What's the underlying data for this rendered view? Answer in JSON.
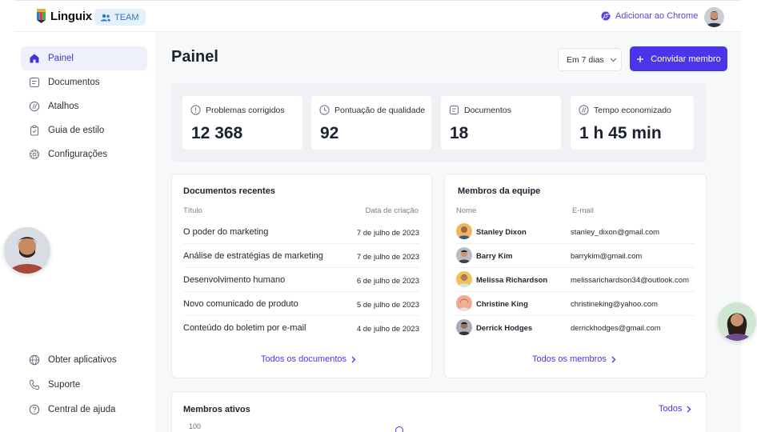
{
  "header": {
    "brand": "Linguix",
    "team_badge": "TEAM",
    "chrome_link": "Adicionar ao Chrome"
  },
  "sidebar": {
    "items": [
      {
        "label": "Painel",
        "icon": "home-icon",
        "active": true
      },
      {
        "label": "Documentos",
        "icon": "document-icon"
      },
      {
        "label": "Atalhos",
        "icon": "shortcut-icon"
      },
      {
        "label": "Guia de estilo",
        "icon": "clipboard-icon"
      },
      {
        "label": "Configurações",
        "icon": "gear-icon"
      }
    ],
    "bottom_items": [
      {
        "label": "Obter aplicativos",
        "icon": "globe-icon"
      },
      {
        "label": "Suporte",
        "icon": "phone-icon"
      },
      {
        "label": "Central de ajuda",
        "icon": "help-icon"
      }
    ]
  },
  "main": {
    "title": "Painel",
    "range_select": "Em 7 dias",
    "invite_button": "Convidar membro",
    "stats": [
      {
        "label": "Problemas corrigidos",
        "value": "12 368",
        "icon": "alert-circle-icon"
      },
      {
        "label": "Pontuação de qualidade",
        "value": "92",
        "icon": "clock-icon"
      },
      {
        "label": "Documentos",
        "value": "18",
        "icon": "document-icon"
      },
      {
        "label": "Tempo economizado",
        "value": "1 h 45 min",
        "icon": "shortcut-icon"
      }
    ],
    "recent_docs": {
      "title": "Documentos recentes",
      "col_title": "Título",
      "col_date": "Data de criação",
      "rows": [
        {
          "title": "O poder do marketing",
          "date": "7 de julho de 2023"
        },
        {
          "title": "Análise de estratégias de marketing",
          "date": "7 de julho de 2023"
        },
        {
          "title": "Desenvolvimento humano",
          "date": "6 de julho de 2023"
        },
        {
          "title": "Novo comunicado de produto",
          "date": "5 de julho de 2023"
        },
        {
          "title": "Conteúdo do boletim por e-mail",
          "date": "4 de julho de 2023"
        }
      ],
      "link": "Todos os documentos"
    },
    "team_members": {
      "title": "Membros da equipe",
      "col_name": "Nome",
      "col_email": "E-mail",
      "rows": [
        {
          "name": "Stanley Dixon",
          "email": "stanley_dixon@gmail.com"
        },
        {
          "name": "Barry Kim",
          "email": "barrykim@gmail.com"
        },
        {
          "name": "Melissa Richardson",
          "email": "melissarichardson34@outlook.com"
        },
        {
          "name": "Christine King",
          "email": "christineking@yahoo.com"
        },
        {
          "name": "Derrick Hodges",
          "email": "derrickhodges@gmail.com"
        }
      ],
      "link": "Todos os membros"
    },
    "active_members": {
      "title": "Membros ativos",
      "link": "Todos",
      "y_tick": "100"
    }
  },
  "colors": {
    "accent": "#4b35e8",
    "active_nav_bg": "#eef0fb",
    "team_badge_bg": "#e4f0fb"
  }
}
